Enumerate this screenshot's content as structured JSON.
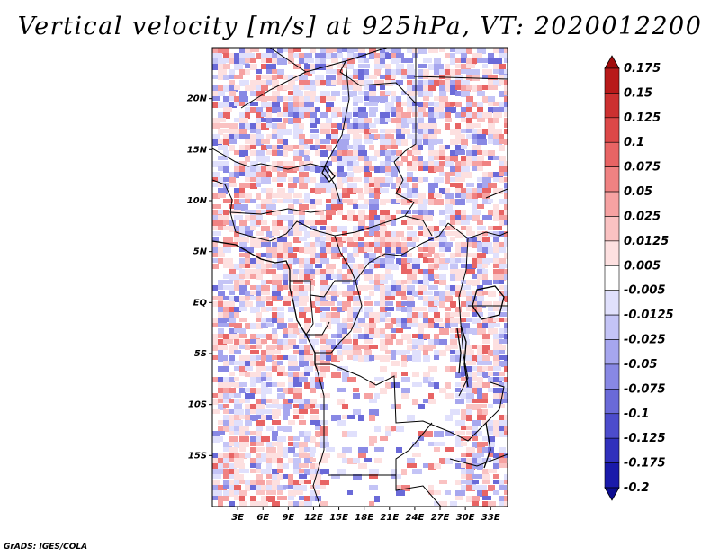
{
  "title": "Vertical velocity [m/s] at 925hPa, VT: 2020012200",
  "credit": "GrADS: IGES/COLA",
  "map": {
    "variable": "Vertical velocity",
    "units": "m/s",
    "level": "925hPa",
    "valid_time": "2020012200",
    "lon_range": [
      0,
      35
    ],
    "lat_range": [
      -20,
      25
    ],
    "lat_ticks": [
      {
        "value": 20,
        "label": "20N"
      },
      {
        "value": 15,
        "label": "15N"
      },
      {
        "value": 10,
        "label": "10N"
      },
      {
        "value": 5,
        "label": "5N"
      },
      {
        "value": 0,
        "label": "EQ"
      },
      {
        "value": -5,
        "label": "5S"
      },
      {
        "value": -10,
        "label": "10S"
      },
      {
        "value": -15,
        "label": "15S"
      }
    ],
    "lon_ticks": [
      {
        "value": 3,
        "label": "3E"
      },
      {
        "value": 6,
        "label": "6E"
      },
      {
        "value": 9,
        "label": "9E"
      },
      {
        "value": 12,
        "label": "12E"
      },
      {
        "value": 15,
        "label": "15E"
      },
      {
        "value": 18,
        "label": "18E"
      },
      {
        "value": 21,
        "label": "21E"
      },
      {
        "value": 24,
        "label": "24E"
      },
      {
        "value": 27,
        "label": "27E"
      },
      {
        "value": 30,
        "label": "30E"
      },
      {
        "value": 33,
        "label": "33E"
      }
    ]
  },
  "colorbar": {
    "labels": [
      "0.175",
      "0.15",
      "0.125",
      "0.1",
      "0.075",
      "0.05",
      "0.025",
      "0.0125",
      "0.005",
      "-0.005",
      "-0.0125",
      "-0.025",
      "-0.05",
      "-0.075",
      "-0.1",
      "-0.125",
      "-0.175",
      "-0.2"
    ],
    "colors": [
      "#a00c0c",
      "#b81a1a",
      "#cc3030",
      "#dc4848",
      "#e86464",
      "#f08282",
      "#f6a2a2",
      "#fac2c2",
      "#fde0e0",
      "#ffffff",
      "#e0e0fc",
      "#c4c4f6",
      "#a6a6ee",
      "#8888e4",
      "#6a6ad8",
      "#4c4ccc",
      "#3030bc",
      "#1a1aaa",
      "#0c0c90"
    ]
  }
}
